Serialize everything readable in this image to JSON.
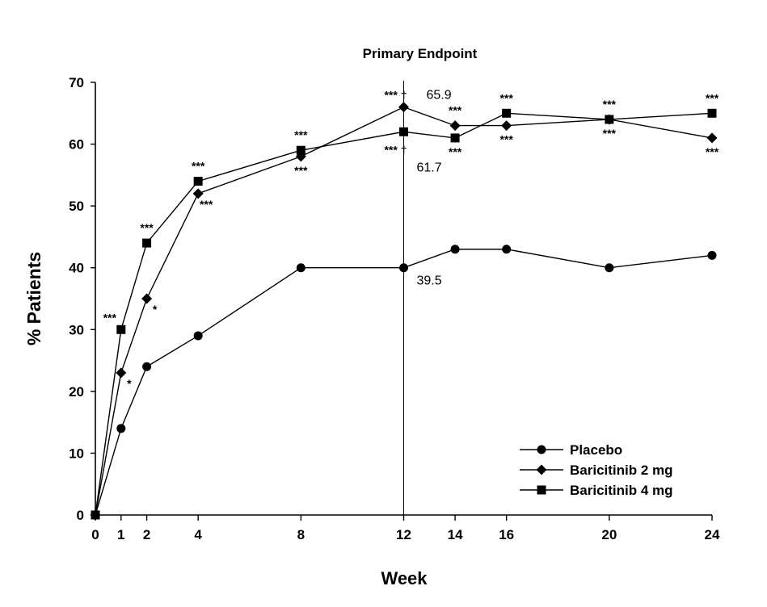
{
  "chart_data": {
    "type": "line",
    "title": "",
    "xlabel": "Week",
    "ylabel": "% Patients",
    "xlim": [
      0,
      24
    ],
    "ylim": [
      0,
      70
    ],
    "x_ticks": [
      0,
      1,
      2,
      4,
      8,
      12,
      14,
      16,
      20,
      24
    ],
    "y_ticks": [
      0,
      10,
      20,
      30,
      40,
      50,
      60,
      70
    ],
    "grid": false,
    "legend_position": "bottom-right",
    "reference_line": {
      "x": 12,
      "label": "Primary Endpoint"
    },
    "series": [
      {
        "name": "Placebo",
        "marker": "circle",
        "x": [
          0,
          1,
          2,
          4,
          8,
          12,
          14,
          16,
          20,
          24
        ],
        "values": [
          0,
          14,
          24,
          29,
          40,
          40,
          43,
          43,
          40,
          42
        ]
      },
      {
        "name": "Baricitinib 2 mg",
        "marker": "diamond",
        "x": [
          0,
          1,
          2,
          4,
          8,
          12,
          14,
          16,
          20,
          24
        ],
        "values": [
          0,
          23,
          35,
          52,
          58,
          66,
          63,
          63,
          64,
          61
        ]
      },
      {
        "name": "Baricitinib 4 mg",
        "marker": "square",
        "x": [
          0,
          1,
          2,
          4,
          8,
          12,
          14,
          16,
          20,
          24
        ],
        "values": [
          0,
          30,
          44,
          54,
          59,
          62,
          61,
          65,
          64,
          65
        ]
      }
    ],
    "annotations": [
      {
        "text": "***",
        "x": 1,
        "y": 30,
        "pos": "left-above"
      },
      {
        "text": "*",
        "x": 1,
        "y": 23,
        "pos": "right-below"
      },
      {
        "text": "***",
        "x": 2,
        "y": 44,
        "pos": "above"
      },
      {
        "text": "*",
        "x": 2,
        "y": 35,
        "pos": "right-below"
      },
      {
        "text": "***",
        "x": 4,
        "y": 54,
        "pos": "above"
      },
      {
        "text": "***",
        "x": 4,
        "y": 52,
        "pos": "right-below"
      },
      {
        "text": "***",
        "x": 8,
        "y": 59,
        "pos": "above"
      },
      {
        "text": "***",
        "x": 8,
        "y": 58,
        "pos": "below"
      },
      {
        "text": "*** †",
        "x": 12,
        "y": 66,
        "pos": "above-left"
      },
      {
        "text": "65.9",
        "x": 12,
        "y": 66,
        "pos": "above-right"
      },
      {
        "text": "*** †",
        "x": 12,
        "y": 62,
        "pos": "below-left"
      },
      {
        "text": "61.7",
        "x": 12,
        "y": 62,
        "pos": "below-right"
      },
      {
        "text": "39.5",
        "x": 12,
        "y": 40,
        "pos": "below-right"
      },
      {
        "text": "***",
        "x": 14,
        "y": 63,
        "pos": "above"
      },
      {
        "text": "***",
        "x": 14,
        "y": 61,
        "pos": "below"
      },
      {
        "text": "***",
        "x": 16,
        "y": 65,
        "pos": "above"
      },
      {
        "text": "***",
        "x": 16,
        "y": 63,
        "pos": "below"
      },
      {
        "text": "***",
        "x": 20,
        "y": 64,
        "pos": "above"
      },
      {
        "text": "***",
        "x": 20,
        "y": 64,
        "pos": "below"
      },
      {
        "text": "***",
        "x": 24,
        "y": 65,
        "pos": "above"
      },
      {
        "text": "***",
        "x": 24,
        "y": 61,
        "pos": "below"
      }
    ]
  }
}
